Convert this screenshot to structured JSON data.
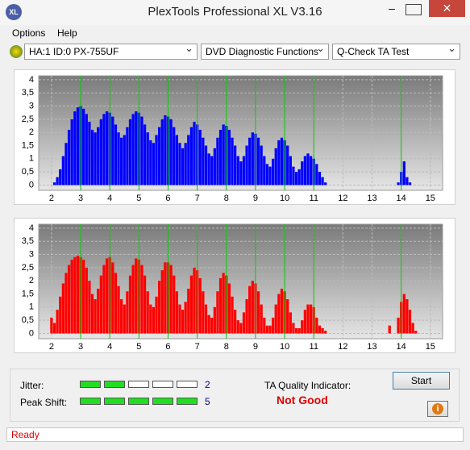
{
  "window": {
    "title": "PlexTools Professional XL V3.16",
    "icon": "XL"
  },
  "menu": [
    "Options",
    "Help"
  ],
  "toolbar": {
    "drive": "HA:1 ID:0  PX-755UF",
    "function": "DVD Diagnostic Functions",
    "test": "Q-Check TA Test"
  },
  "charts": [
    {
      "type": "bar",
      "color": "#0000ff",
      "marker_color": "#00cc00",
      "xlim": [
        1.56,
        15.42
      ],
      "ylim": [
        -0.2,
        4.15
      ],
      "xticks": [
        2,
        3,
        4,
        5,
        6,
        7,
        8,
        9,
        10,
        11,
        12,
        13,
        14,
        15
      ],
      "yticks": [
        0,
        {
          "value": 0.5,
          "label": "0,5"
        },
        1,
        {
          "value": 1.5,
          "label": "1,5"
        },
        2,
        {
          "value": 2.5,
          "label": "2,5"
        },
        3,
        {
          "value": 3.5,
          "label": "3,5"
        },
        4
      ],
      "markers": [
        3,
        4,
        5,
        6,
        7,
        8,
        9,
        10,
        11,
        14
      ],
      "x": [
        2.0,
        2.1,
        2.2,
        2.3,
        2.4,
        2.5,
        2.6,
        2.7,
        2.8,
        2.9,
        3.0,
        3.1,
        3.2,
        3.3,
        3.4,
        3.5,
        3.6,
        3.7,
        3.8,
        3.9,
        4.0,
        4.1,
        4.2,
        4.3,
        4.4,
        4.5,
        4.6,
        4.7,
        4.8,
        4.9,
        5.0,
        5.1,
        5.2,
        5.3,
        5.4,
        5.5,
        5.6,
        5.7,
        5.8,
        5.9,
        6.0,
        6.1,
        6.2,
        6.3,
        6.4,
        6.5,
        6.6,
        6.7,
        6.8,
        6.9,
        7.0,
        7.1,
        7.2,
        7.3,
        7.4,
        7.5,
        7.6,
        7.7,
        7.8,
        7.9,
        8.0,
        8.1,
        8.2,
        8.3,
        8.4,
        8.5,
        8.6,
        8.7,
        8.8,
        8.9,
        9.0,
        9.1,
        9.2,
        9.3,
        9.4,
        9.5,
        9.6,
        9.7,
        9.8,
        9.9,
        10.0,
        10.1,
        10.2,
        10.3,
        10.4,
        10.5,
        10.6,
        10.7,
        10.8,
        10.9,
        11.0,
        11.1,
        11.2,
        11.3,
        11.4,
        13.9,
        14.0,
        14.1,
        14.2,
        14.3
      ],
      "values": [
        0,
        0.1,
        0.3,
        0.6,
        1.1,
        1.6,
        2.1,
        2.5,
        2.8,
        2.95,
        3.0,
        2.9,
        2.7,
        2.4,
        2.1,
        2.0,
        2.2,
        2.5,
        2.7,
        2.8,
        2.75,
        2.6,
        2.3,
        2.0,
        1.8,
        1.9,
        2.2,
        2.5,
        2.7,
        2.8,
        2.75,
        2.6,
        2.3,
        2.0,
        1.7,
        1.6,
        1.9,
        2.2,
        2.5,
        2.65,
        2.6,
        2.5,
        2.2,
        1.9,
        1.6,
        1.4,
        1.6,
        1.9,
        2.2,
        2.4,
        2.3,
        2.1,
        1.8,
        1.5,
        1.2,
        1.1,
        1.4,
        1.8,
        2.1,
        2.3,
        2.25,
        2.1,
        1.8,
        1.5,
        1.1,
        0.9,
        1.1,
        1.5,
        1.8,
        2.0,
        1.95,
        1.8,
        1.5,
        1.1,
        0.8,
        0.7,
        1.0,
        1.4,
        1.7,
        1.8,
        1.7,
        1.5,
        1.1,
        0.7,
        0.5,
        0.6,
        0.9,
        1.1,
        1.2,
        1.1,
        1.0,
        0.8,
        0.5,
        0.3,
        0.1,
        0.1,
        0.5,
        0.9,
        0.3,
        0.1
      ]
    },
    {
      "type": "bar",
      "color": "#ff0000",
      "marker_color": "#00cc00",
      "xlim": [
        1.56,
        15.42
      ],
      "ylim": [
        -0.2,
        4.15
      ],
      "xticks": [
        2,
        3,
        4,
        5,
        6,
        7,
        8,
        9,
        10,
        11,
        12,
        13,
        14,
        15
      ],
      "yticks": [
        0,
        {
          "value": 0.5,
          "label": "0,5"
        },
        1,
        {
          "value": 1.5,
          "label": "1,5"
        },
        2,
        {
          "value": 2.5,
          "label": "2,5"
        },
        3,
        {
          "value": 3.5,
          "label": "3,5"
        },
        4
      ],
      "markers": [
        3,
        4,
        5,
        6,
        7,
        8,
        9,
        10,
        11,
        14
      ],
      "x": [
        2.0,
        2.1,
        2.2,
        2.3,
        2.4,
        2.5,
        2.6,
        2.7,
        2.8,
        2.9,
        3.0,
        3.1,
        3.2,
        3.3,
        3.4,
        3.5,
        3.6,
        3.7,
        3.8,
        3.9,
        4.0,
        4.1,
        4.2,
        4.3,
        4.4,
        4.5,
        4.6,
        4.7,
        4.8,
        4.9,
        5.0,
        5.1,
        5.2,
        5.3,
        5.4,
        5.5,
        5.6,
        5.7,
        5.8,
        5.9,
        6.0,
        6.1,
        6.2,
        6.3,
        6.4,
        6.5,
        6.6,
        6.7,
        6.8,
        6.9,
        7.0,
        7.1,
        7.2,
        7.3,
        7.4,
        7.5,
        7.6,
        7.7,
        7.8,
        7.9,
        8.0,
        8.1,
        8.2,
        8.3,
        8.4,
        8.5,
        8.6,
        8.7,
        8.8,
        8.9,
        9.0,
        9.1,
        9.2,
        9.3,
        9.4,
        9.5,
        9.6,
        9.7,
        9.8,
        9.9,
        10.0,
        10.1,
        10.2,
        10.3,
        10.4,
        10.5,
        10.6,
        10.7,
        10.8,
        10.9,
        11.0,
        11.1,
        11.2,
        11.3,
        11.4,
        13.6,
        13.9,
        14.0,
        14.1,
        14.2,
        14.3,
        14.4,
        14.5
      ],
      "values": [
        0.6,
        0.4,
        0.9,
        1.4,
        1.9,
        2.3,
        2.6,
        2.8,
        2.9,
        2.95,
        2.9,
        2.8,
        2.5,
        2.0,
        1.5,
        1.3,
        1.7,
        2.2,
        2.6,
        2.85,
        2.9,
        2.7,
        2.3,
        1.8,
        1.3,
        1.1,
        1.6,
        2.2,
        2.6,
        2.85,
        2.8,
        2.6,
        2.2,
        1.6,
        1.1,
        1.0,
        1.4,
        2.0,
        2.4,
        2.7,
        2.7,
        2.6,
        2.2,
        1.6,
        1.1,
        0.9,
        1.2,
        1.7,
        2.2,
        2.5,
        2.4,
        2.1,
        1.6,
        1.1,
        0.7,
        0.6,
        1.0,
        1.6,
        2.1,
        2.3,
        2.2,
        1.9,
        1.4,
        0.9,
        0.5,
        0.4,
        0.8,
        1.3,
        1.8,
        2.0,
        1.9,
        1.6,
        1.1,
        0.6,
        0.3,
        0.3,
        0.6,
        1.1,
        1.5,
        1.7,
        1.6,
        1.3,
        0.8,
        0.4,
        0.2,
        0.2,
        0.5,
        0.9,
        1.1,
        1.1,
        1.0,
        0.6,
        0.3,
        0.2,
        0.1,
        0.3,
        0.6,
        1.2,
        1.5,
        1.3,
        0.9,
        0.4,
        0.1
      ]
    }
  ],
  "results": {
    "jitter_label": "Jitter:",
    "jitter": 2,
    "peak_shift_label": "Peak Shift:",
    "peak_shift": 5,
    "ta_label": "TA Quality Indicator:",
    "ta_result": "Not Good"
  },
  "buttons": {
    "start": "Start",
    "info": "i"
  },
  "status": "Ready"
}
